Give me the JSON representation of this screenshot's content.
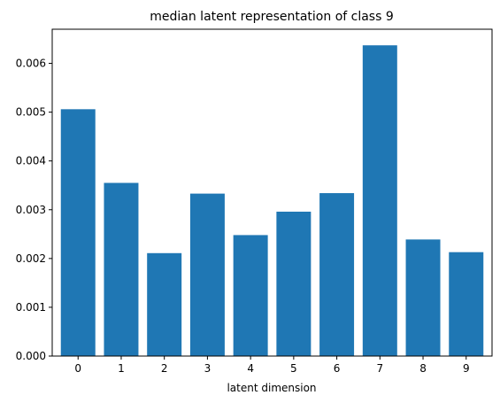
{
  "chart_data": {
    "type": "bar",
    "title": "median latent representation of class 9",
    "xlabel": "latent dimension",
    "ylabel": "",
    "categories": [
      "0",
      "1",
      "2",
      "3",
      "4",
      "5",
      "6",
      "7",
      "8",
      "9"
    ],
    "values": [
      0.00506,
      0.00355,
      0.00211,
      0.00333,
      0.00248,
      0.00296,
      0.00334,
      0.00637,
      0.00239,
      0.00213
    ],
    "ylim": [
      0,
      0.0067
    ],
    "yticks": [
      "0.000",
      "0.001",
      "0.002",
      "0.003",
      "0.004",
      "0.005",
      "0.006"
    ],
    "bar_color": "#1f77b4",
    "grid": false,
    "legend": "none"
  }
}
